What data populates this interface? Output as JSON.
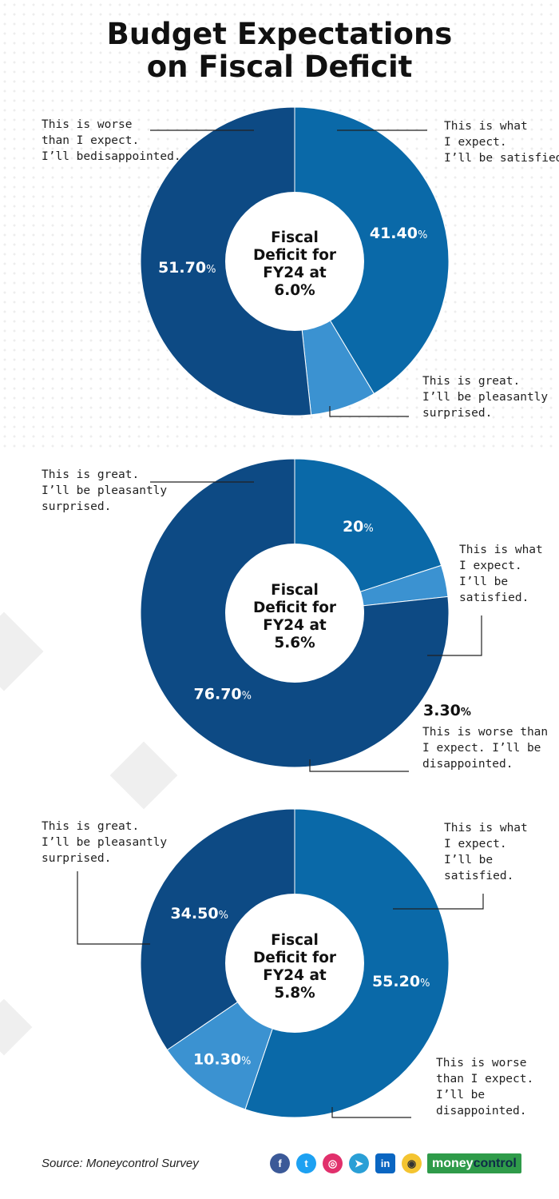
{
  "title": {
    "line1": "Budget Expectations",
    "line2": "on Fiscal Deficit"
  },
  "colors": {
    "dark": "#0d4a84",
    "mid": "#0a69a8",
    "light": "#3b92d1"
  },
  "chart_data": [
    {
      "type": "pie",
      "center_label": [
        "Fiscal",
        "Deficit for",
        "FY24 at",
        "6.0%"
      ],
      "slices": [
        {
          "value": 41.4,
          "pct_num": "41.40",
          "color": "mid",
          "note": [
            "This is what",
            "I expect.",
            "I’ll be satisfied."
          ]
        },
        {
          "value": 6.9,
          "pct_num": "6.90",
          "color": "light",
          "note": [
            "This is great.",
            "I’ll be pleasantly",
            "surprised."
          ]
        },
        {
          "value": 51.7,
          "pct_num": "51.70",
          "color": "dark",
          "note": [
            "This is worse",
            "than I expect.",
            "I’ll bedisappointed."
          ]
        }
      ]
    },
    {
      "type": "pie",
      "center_label": [
        "Fiscal",
        "Deficit for",
        "FY24 at",
        "5.6%"
      ],
      "slices": [
        {
          "value": 20,
          "pct_num": "20",
          "color": "mid",
          "note": [
            "This is what",
            "I expect.",
            "I’ll be",
            "satisfied."
          ]
        },
        {
          "value": 3.3,
          "pct_num": "3.30",
          "color": "light",
          "note": [
            "This is worse than",
            "I expect. I’ll be",
            "disappointed."
          ]
        },
        {
          "value": 76.7,
          "pct_num": "76.70",
          "color": "dark",
          "note": [
            "This is great.",
            "I’ll be pleasantly",
            "surprised."
          ]
        }
      ]
    },
    {
      "type": "pie",
      "center_label": [
        "Fiscal",
        "Deficit for",
        "FY24 at",
        "5.8%"
      ],
      "slices": [
        {
          "value": 55.2,
          "pct_num": "55.20",
          "color": "mid",
          "note": [
            "This is what",
            "I expect.",
            "I’ll be",
            "satisfied."
          ]
        },
        {
          "value": 10.3,
          "pct_num": "10.30",
          "color": "light",
          "note": [
            "This is worse",
            "than I expect.",
            "I’ll be",
            "disappointed."
          ]
        },
        {
          "value": 34.5,
          "pct_num": "34.50",
          "color": "dark",
          "note": [
            "This is great.",
            "I’ll be pleasantly",
            "surprised."
          ]
        }
      ]
    }
  ],
  "pct_sign": "%",
  "source": "Source: Moneycontrol Survey",
  "social": [
    {
      "icon": "facebook-icon",
      "glyph": "f",
      "color": "#3b5998"
    },
    {
      "icon": "twitter-icon",
      "glyph": "t",
      "color": "#1da1f2"
    },
    {
      "icon": "instagram-icon",
      "glyph": "◎",
      "color": "#e1306c"
    },
    {
      "icon": "telegram-icon",
      "glyph": "➤",
      "color": "#2a9fd6"
    },
    {
      "icon": "linkedin-icon",
      "glyph": "in",
      "color": "#0a66c2"
    },
    {
      "icon": "koo-icon",
      "glyph": "◉",
      "color": "#f4c431"
    }
  ],
  "brand": {
    "part1": "money",
    "part2": "control"
  }
}
